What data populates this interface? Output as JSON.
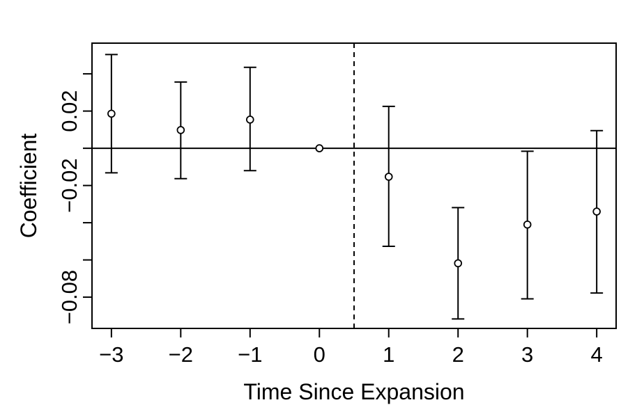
{
  "figure": {
    "background_color": "#ffffff",
    "foreground_color": "#000000"
  },
  "chart_data": {
    "type": "scatter",
    "subtype": "event-study-coefficients-with-error-bars",
    "title": "",
    "xlabel": "Time Since Expansion",
    "ylabel": "Coefficient",
    "xlim": [
      -3.28,
      4.28
    ],
    "ylim": [
      -0.0968,
      0.0565
    ],
    "grid": false,
    "legend": null,
    "x_ticks": [
      {
        "v": -3,
        "label": "−3"
      },
      {
        "v": -2,
        "label": "−2"
      },
      {
        "v": -1,
        "label": "−1"
      },
      {
        "v": 0,
        "label": "0"
      },
      {
        "v": 1,
        "label": "1"
      },
      {
        "v": 2,
        "label": "2"
      },
      {
        "v": 3,
        "label": "3"
      },
      {
        "v": 4,
        "label": "4"
      }
    ],
    "y_ticks": [
      {
        "v": 0.04,
        "label": ""
      },
      {
        "v": 0.02,
        "label": "0.02"
      },
      {
        "v": 0.0,
        "label": ""
      },
      {
        "v": -0.02,
        "label": "−0.02"
      },
      {
        "v": -0.04,
        "label": ""
      },
      {
        "v": -0.06,
        "label": ""
      },
      {
        "v": -0.08,
        "label": "−0.08"
      }
    ],
    "reference_lines": {
      "horizontal": {
        "y": 0,
        "style": "solid"
      },
      "vertical": {
        "x": 0.5,
        "style": "dashed"
      }
    },
    "series": [
      {
        "name": "coefficient-estimates",
        "marker": "open-circle",
        "color": "#000000",
        "points": [
          {
            "x": -3,
            "est": 0.0186,
            "ci_low": -0.0132,
            "ci_high": 0.0504
          },
          {
            "x": -2,
            "est": 0.0098,
            "ci_low": -0.0163,
            "ci_high": 0.0356
          },
          {
            "x": -1,
            "est": 0.0154,
            "ci_low": -0.012,
            "ci_high": 0.0435
          },
          {
            "x": 0,
            "est": 0.0,
            "ci_low": null,
            "ci_high": null
          },
          {
            "x": 1,
            "est": -0.0153,
            "ci_low": -0.0527,
            "ci_high": 0.0225
          },
          {
            "x": 2,
            "est": -0.0618,
            "ci_low": -0.0917,
            "ci_high": -0.0319
          },
          {
            "x": 3,
            "est": -0.041,
            "ci_low": -0.0809,
            "ci_high": -0.0016
          },
          {
            "x": 4,
            "est": -0.034,
            "ci_low": -0.0778,
            "ci_high": 0.0095
          }
        ]
      }
    ]
  }
}
